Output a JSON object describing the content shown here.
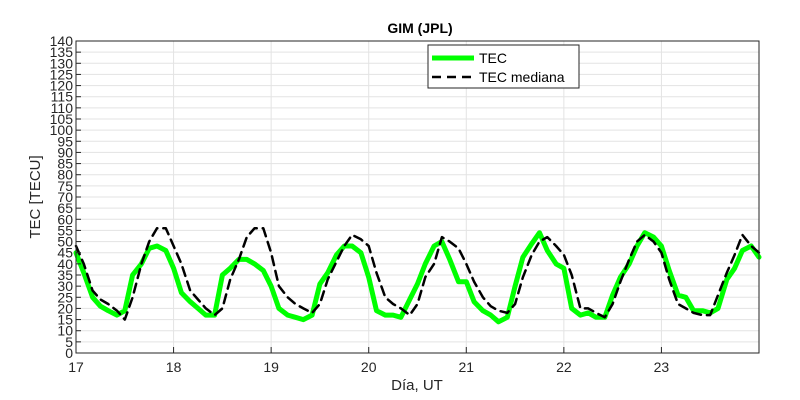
{
  "chart_data": {
    "type": "line",
    "title": "GIM (JPL)",
    "xlabel": "Día, UT",
    "ylabel": "TEC [TECU]",
    "xlim": [
      17,
      24
    ],
    "ylim": [
      0,
      140
    ],
    "xticks": [
      17,
      18,
      19,
      20,
      21,
      22,
      23
    ],
    "yticks": [
      0,
      5,
      10,
      15,
      20,
      25,
      30,
      35,
      40,
      45,
      50,
      55,
      60,
      65,
      70,
      75,
      80,
      85,
      90,
      95,
      100,
      105,
      110,
      115,
      120,
      125,
      130,
      135,
      140
    ],
    "grid": true,
    "legend_position": "top-right",
    "series": [
      {
        "name": "TEC",
        "color": "#00ff00",
        "style": "solid",
        "x": [
          17.0,
          17.08,
          17.17,
          17.25,
          17.33,
          17.42,
          17.5,
          17.58,
          17.67,
          17.75,
          17.83,
          17.92,
          18.0,
          18.08,
          18.17,
          18.25,
          18.33,
          18.42,
          18.5,
          18.58,
          18.67,
          18.75,
          18.83,
          18.92,
          19.0,
          19.08,
          19.17,
          19.25,
          19.33,
          19.42,
          19.5,
          19.58,
          19.67,
          19.75,
          19.83,
          19.92,
          20.0,
          20.08,
          20.17,
          20.25,
          20.33,
          20.42,
          20.5,
          20.58,
          20.67,
          20.75,
          20.83,
          20.92,
          21.0,
          21.08,
          21.17,
          21.25,
          21.33,
          21.42,
          21.5,
          21.58,
          21.67,
          21.75,
          21.83,
          21.92,
          22.0,
          22.08,
          22.17,
          22.25,
          22.33,
          22.42,
          22.5,
          22.58,
          22.67,
          22.75,
          22.83,
          22.92,
          23.0,
          23.08,
          23.17,
          23.25,
          23.33,
          23.42,
          23.5,
          23.58,
          23.67,
          23.75,
          23.83,
          23.92,
          24.0
        ],
        "values": [
          45,
          36,
          25,
          21,
          19,
          17,
          19,
          35,
          40,
          47,
          48,
          46,
          38,
          27,
          23,
          20,
          17,
          17,
          35,
          38,
          42,
          42,
          40,
          37,
          30,
          20,
          17,
          16,
          15,
          17,
          31,
          36,
          44,
          48,
          48,
          45,
          34,
          19,
          17,
          17,
          16,
          24,
          31,
          40,
          48,
          50,
          42,
          32,
          32,
          23,
          19,
          17,
          14,
          16,
          30,
          43,
          49,
          54,
          46,
          40,
          38,
          20,
          17,
          18,
          16,
          16,
          26,
          34,
          40,
          48,
          54,
          52,
          48,
          37,
          26,
          25,
          19,
          19,
          18,
          20,
          33,
          38,
          46,
          48,
          43
        ]
      },
      {
        "name": "TEC mediana",
        "color": "#000000",
        "style": "dashed",
        "x": [
          17.0,
          17.08,
          17.17,
          17.25,
          17.33,
          17.42,
          17.5,
          17.58,
          17.67,
          17.75,
          17.83,
          17.92,
          18.0,
          18.08,
          18.17,
          18.25,
          18.33,
          18.42,
          18.5,
          18.58,
          18.67,
          18.75,
          18.83,
          18.92,
          19.0,
          19.08,
          19.17,
          19.25,
          19.33,
          19.42,
          19.5,
          19.58,
          19.67,
          19.75,
          19.83,
          19.92,
          20.0,
          20.08,
          20.17,
          20.25,
          20.33,
          20.42,
          20.5,
          20.58,
          20.67,
          20.75,
          20.83,
          20.92,
          21.0,
          21.08,
          21.17,
          21.25,
          21.33,
          21.42,
          21.5,
          21.58,
          21.67,
          21.75,
          21.83,
          21.92,
          22.0,
          22.08,
          22.17,
          22.25,
          22.33,
          22.42,
          22.5,
          22.58,
          22.67,
          22.75,
          22.83,
          22.92,
          23.0,
          23.08,
          23.17,
          23.25,
          23.33,
          23.42,
          23.5,
          23.58,
          23.67,
          23.75,
          23.83,
          23.92,
          24.0
        ],
        "values": [
          48,
          40,
          28,
          24,
          22,
          19,
          15,
          25,
          40,
          50,
          56,
          56,
          48,
          40,
          28,
          24,
          20,
          17,
          20,
          33,
          42,
          52,
          56,
          56,
          45,
          30,
          25,
          22,
          20,
          18,
          22,
          33,
          41,
          48,
          53,
          51,
          48,
          36,
          25,
          22,
          20,
          17,
          22,
          34,
          40,
          52,
          50,
          47,
          40,
          32,
          25,
          21,
          19,
          18,
          22,
          34,
          44,
          50,
          52,
          48,
          44,
          35,
          20,
          20,
          18,
          16,
          22,
          32,
          42,
          50,
          53,
          50,
          45,
          33,
          22,
          20,
          18,
          17,
          17,
          26,
          36,
          44,
          53,
          48,
          45
        ]
      }
    ]
  }
}
